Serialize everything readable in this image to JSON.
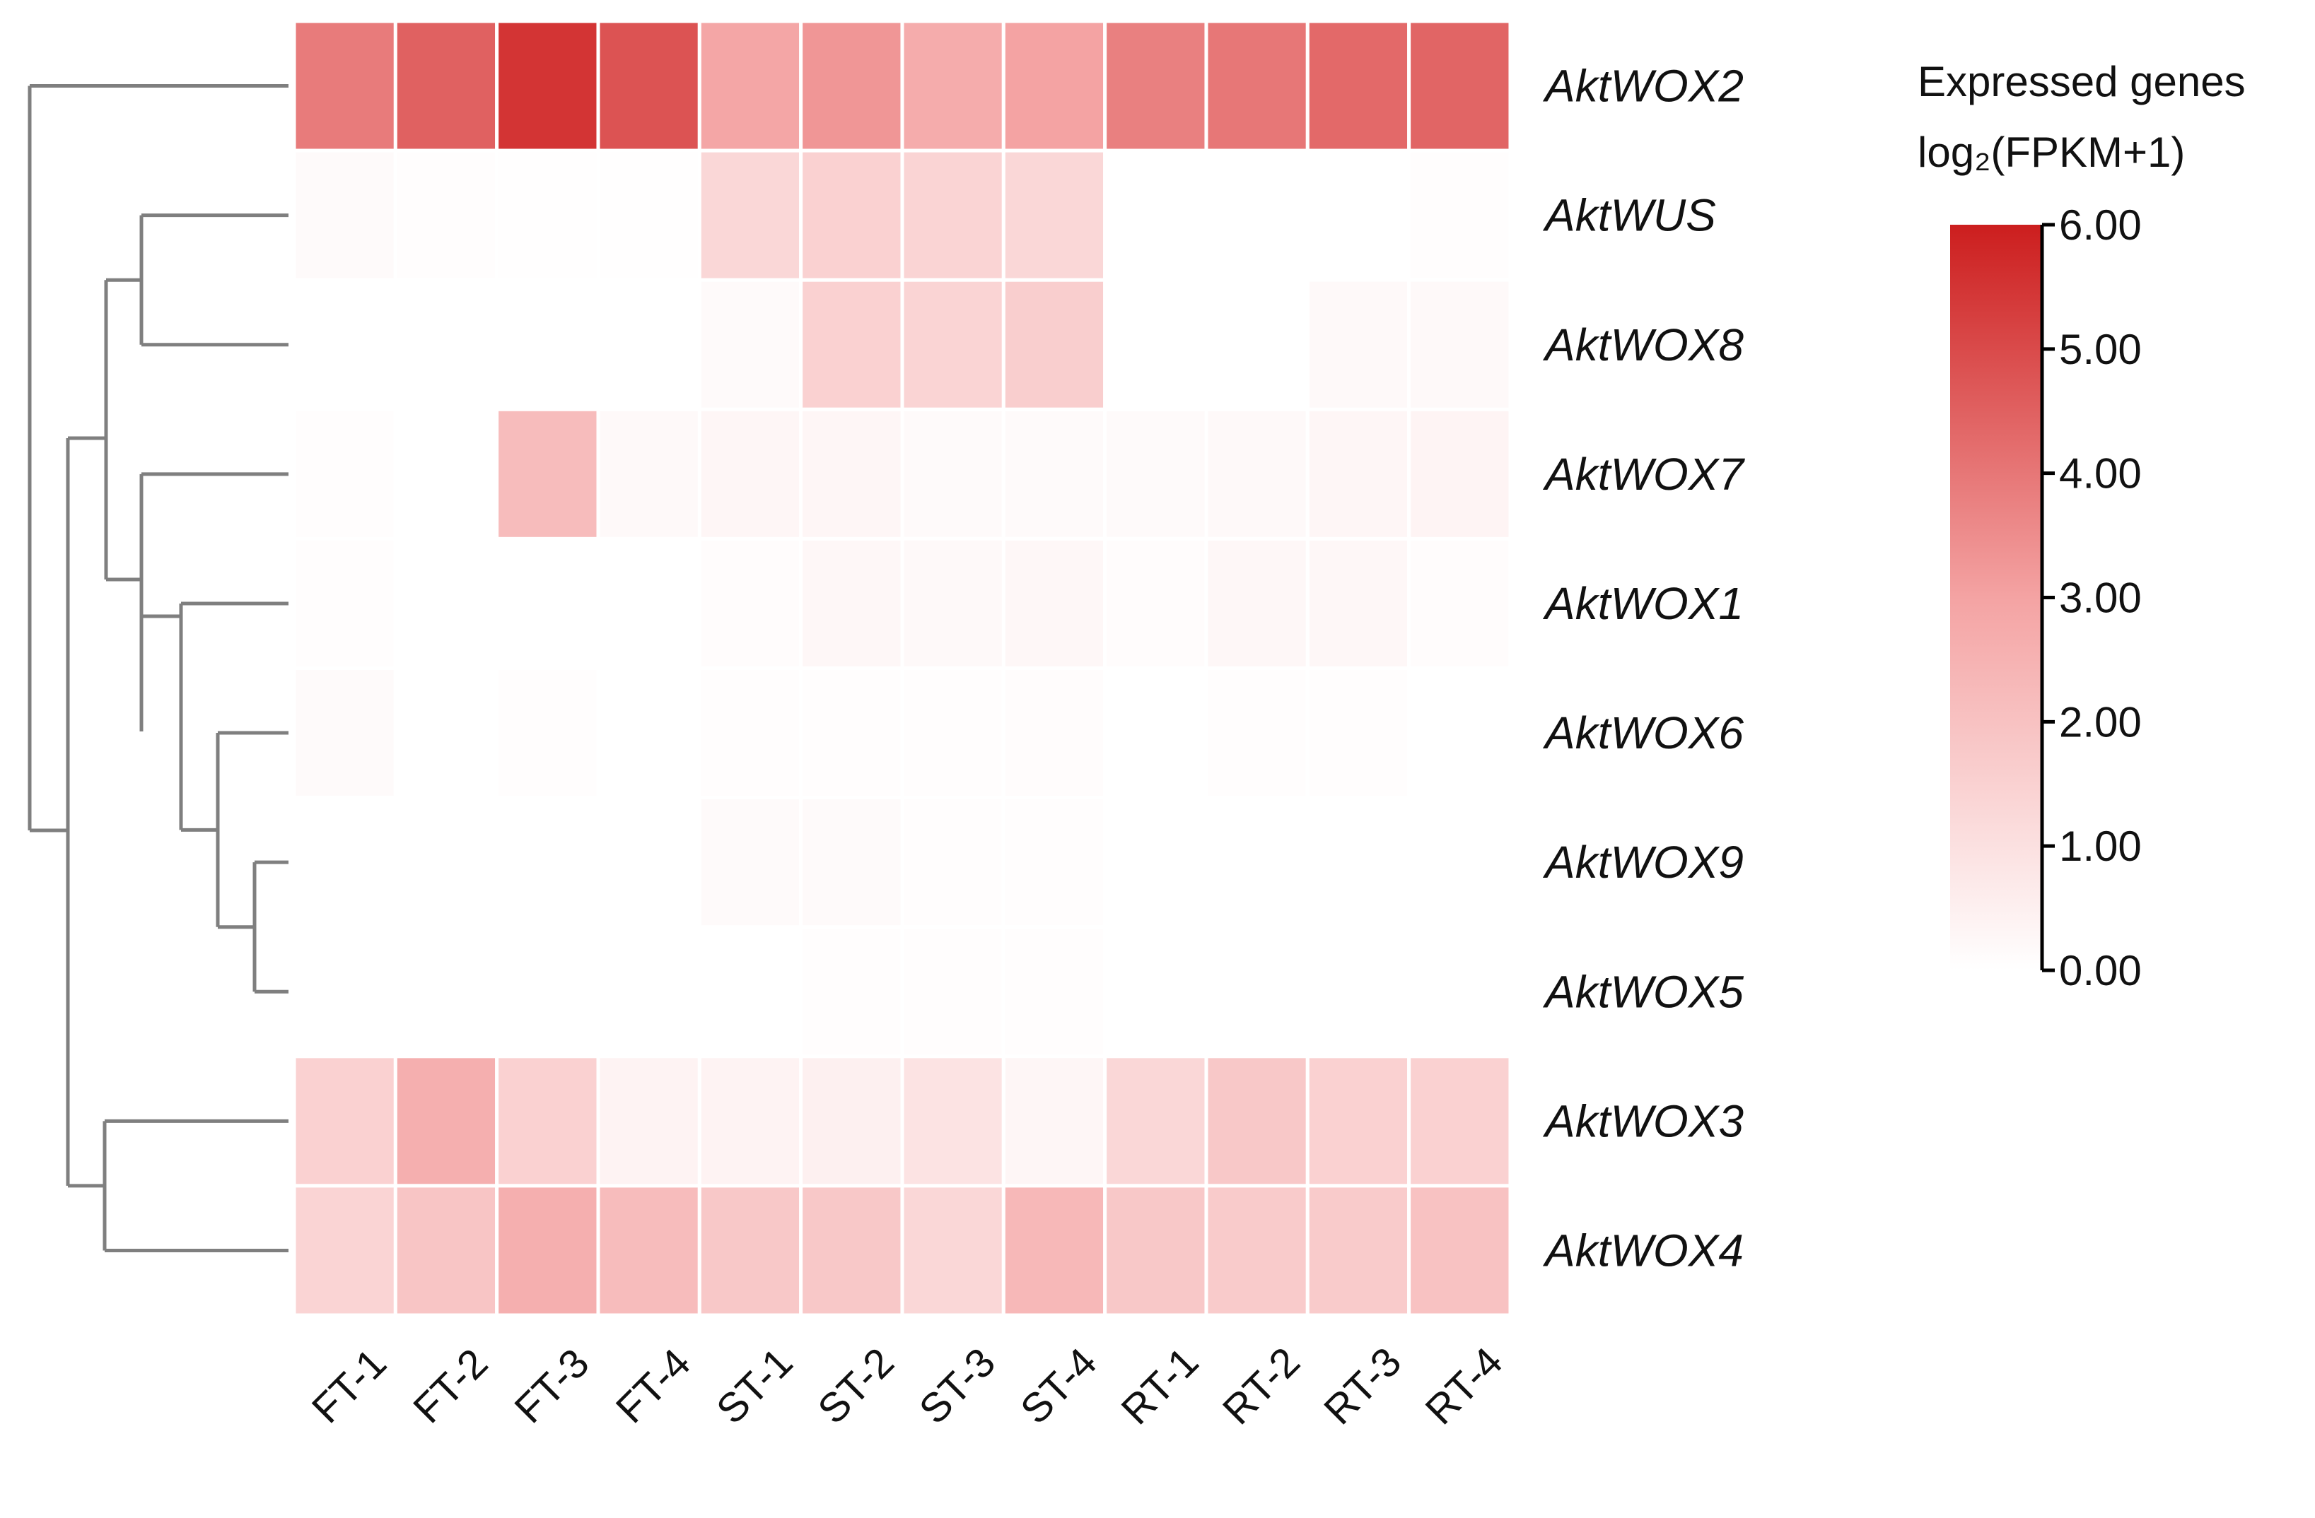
{
  "chart_data": {
    "type": "heatmap",
    "columns": [
      "FT-1",
      "FT-2",
      "FT-3",
      "FT-4",
      "ST-1",
      "ST-2",
      "ST-3",
      "ST-4",
      "RT-1",
      "RT-2",
      "RT-3",
      "RT-4"
    ],
    "rows": [
      "AktWOX2",
      "AktWUS",
      "AktWOX8",
      "AktWOX7",
      "AktWOX1",
      "AktWOX6",
      "AktWOX9",
      "AktWOX5",
      "AktWOX3",
      "AktWOX4"
    ],
    "values": [
      [
        3.9,
        4.5,
        5.5,
        4.8,
        2.9,
        3.3,
        2.7,
        3.0,
        3.8,
        4.0,
        4.3,
        4.4
      ],
      [
        0.15,
        0.05,
        0.02,
        0.02,
        1.3,
        1.5,
        1.4,
        1.3,
        0.0,
        0.0,
        0.0,
        0.05
      ],
      [
        0.0,
        0.0,
        0.0,
        0.0,
        0.15,
        1.5,
        1.4,
        1.6,
        0.0,
        0.0,
        0.2,
        0.2
      ],
      [
        0.05,
        0.0,
        2.2,
        0.2,
        0.3,
        0.3,
        0.15,
        0.15,
        0.15,
        0.2,
        0.3,
        0.35
      ],
      [
        0.05,
        0.0,
        0.0,
        0.0,
        0.1,
        0.25,
        0.2,
        0.25,
        0.1,
        0.25,
        0.25,
        0.1
      ],
      [
        0.15,
        0.0,
        0.05,
        0.0,
        0.05,
        0.05,
        0.05,
        0.1,
        0.0,
        0.05,
        0.05,
        0.0
      ],
      [
        0.0,
        0.0,
        0.0,
        0.0,
        0.15,
        0.15,
        0.05,
        0.05,
        0.0,
        0.0,
        0.0,
        0.0
      ],
      [
        0.0,
        0.0,
        0.0,
        0.0,
        0.0,
        0.05,
        0.05,
        0.05,
        0.0,
        0.0,
        0.0,
        0.0
      ],
      [
        1.5,
        2.6,
        1.5,
        0.4,
        0.4,
        0.5,
        0.9,
        0.3,
        1.3,
        1.8,
        1.5,
        1.5
      ],
      [
        1.4,
        1.9,
        2.6,
        2.2,
        1.8,
        1.8,
        1.3,
        2.3,
        1.8,
        1.7,
        1.7,
        2.0
      ]
    ],
    "legend": {
      "title_line1": "Expressed genes",
      "title_line2": "log₂(FPKM+1)",
      "ticks": [
        "6.00",
        "5.00",
        "4.00",
        "3.00",
        "2.00",
        "1.00",
        "0.00"
      ],
      "range": [
        0,
        6
      ],
      "color_low": "#ffffff",
      "color_mid": "#f4a3a3",
      "color_high": "#cc1e1e"
    },
    "dendrogram_color": "#7f7f7f",
    "cell_border_color": "#ffffff"
  }
}
